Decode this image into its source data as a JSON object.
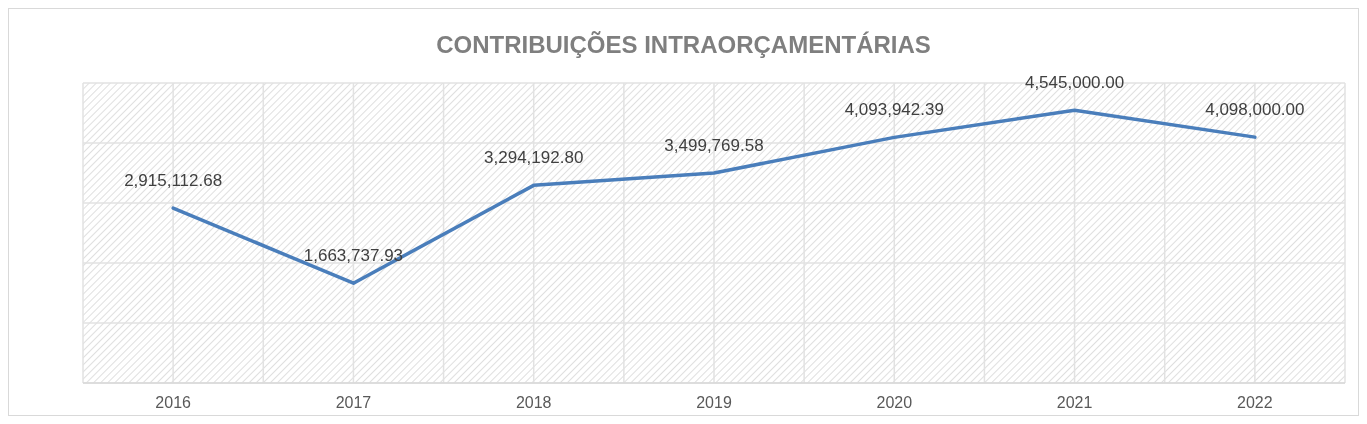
{
  "chart_data": {
    "type": "line",
    "title": "CONTRIBUIÇÕES INTRAORÇAMENTÁRIAS",
    "categories": [
      "2016",
      "2017",
      "2018",
      "2019",
      "2020",
      "2021",
      "2022"
    ],
    "series": [
      {
        "color": "#4a7ebb",
        "values": [
          2915112.68,
          1663737.93,
          3294192.8,
          3499769.58,
          4093942.39,
          4545000.0,
          4098000.0
        ],
        "value_labels": [
          "2,915,112.68",
          "1,663,737.93",
          "3,294,192.80",
          "3,499,769.58",
          "4,093,942.39",
          "4,545,000.00",
          "4,098,000.00"
        ]
      }
    ],
    "tick_labels": "x",
    "grid": true,
    "marker": "none",
    "line_style": "solid"
  }
}
